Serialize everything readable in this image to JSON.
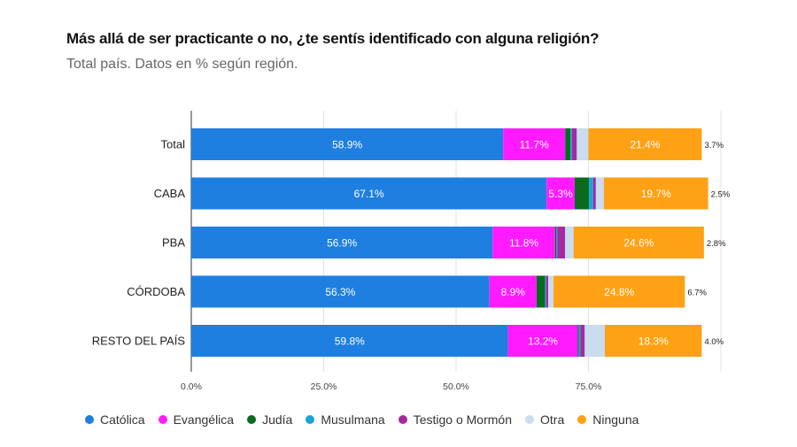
{
  "header": {
    "title": "Más allá de ser practicante o no, ¿te sentís identificado con alguna religión?",
    "subtitle": "Total país. Datos en % según región."
  },
  "chart_data": {
    "type": "bar",
    "orientation": "horizontal",
    "stacked": true,
    "title": "Más allá de ser practicante o no, ¿te sentís identificado con alguna religión?",
    "subtitle": "Total país. Datos en % según región.",
    "categories": [
      "Total",
      "CABA",
      "PBA",
      "CÓRDOBA",
      "RESTO DEL PAÍS"
    ],
    "xlim": [
      0,
      100
    ],
    "xticks": [
      "0.0%",
      "25.0%",
      "50.0%",
      "75.0%"
    ],
    "x_tick_values": [
      0,
      25,
      50,
      75
    ],
    "grid": true,
    "legend_position": "bottom",
    "series": [
      {
        "name": "Católica",
        "color": "#1e7fe0",
        "label_color": "#ffffff",
        "values": [
          58.9,
          67.1,
          56.9,
          56.3,
          59.8
        ],
        "labels": [
          "58.9%",
          "67.1%",
          "56.9%",
          "56.3%",
          "59.8%"
        ]
      },
      {
        "name": "Evangélica",
        "color": "#ff1aff",
        "label_color": "#ffffff",
        "values": [
          11.7,
          5.3,
          11.8,
          8.9,
          13.2
        ],
        "labels": [
          "11.7%",
          "5.3%",
          "11.8%",
          "8.9%",
          "13.2%"
        ]
      },
      {
        "name": "Judía",
        "color": "#0a6b1f",
        "label_color": "#ffffff",
        "values": [
          1.0,
          2.7,
          0.2,
          1.6,
          0.2
        ],
        "labels": [
          "",
          "",
          "",
          "",
          ""
        ]
      },
      {
        "name": "Musulmana",
        "color": "#1aa3d6",
        "label_color": "#ffffff",
        "values": [
          0.3,
          0.8,
          0.2,
          0.2,
          0.3
        ],
        "labels": [
          "",
          "",
          "",
          "",
          ""
        ]
      },
      {
        "name": "Testigo o Mormón",
        "color": "#a52a9e",
        "label_color": "#ffffff",
        "values": [
          0.9,
          0.5,
          1.5,
          0.4,
          0.8
        ],
        "labels": [
          "",
          "",
          "",
          "",
          ""
        ]
      },
      {
        "name": "Otra",
        "color": "#c9dcf0",
        "label_color": "#ffffff",
        "values": [
          2.2,
          1.5,
          1.6,
          1.0,
          3.8
        ],
        "labels": [
          "",
          "",
          "",
          "",
          ""
        ]
      },
      {
        "name": "Ninguna",
        "color": "#ffa114",
        "label_color": "#ffffff",
        "values": [
          21.4,
          19.7,
          24.6,
          24.8,
          18.3
        ],
        "labels": [
          "21.4%",
          "19.7%",
          "24.6%",
          "24.8%",
          "18.3%"
        ]
      }
    ],
    "outside_labels": [
      "3.7%",
      "2.5%",
      "2.8%",
      "6.7%",
      "4.0%"
    ]
  }
}
